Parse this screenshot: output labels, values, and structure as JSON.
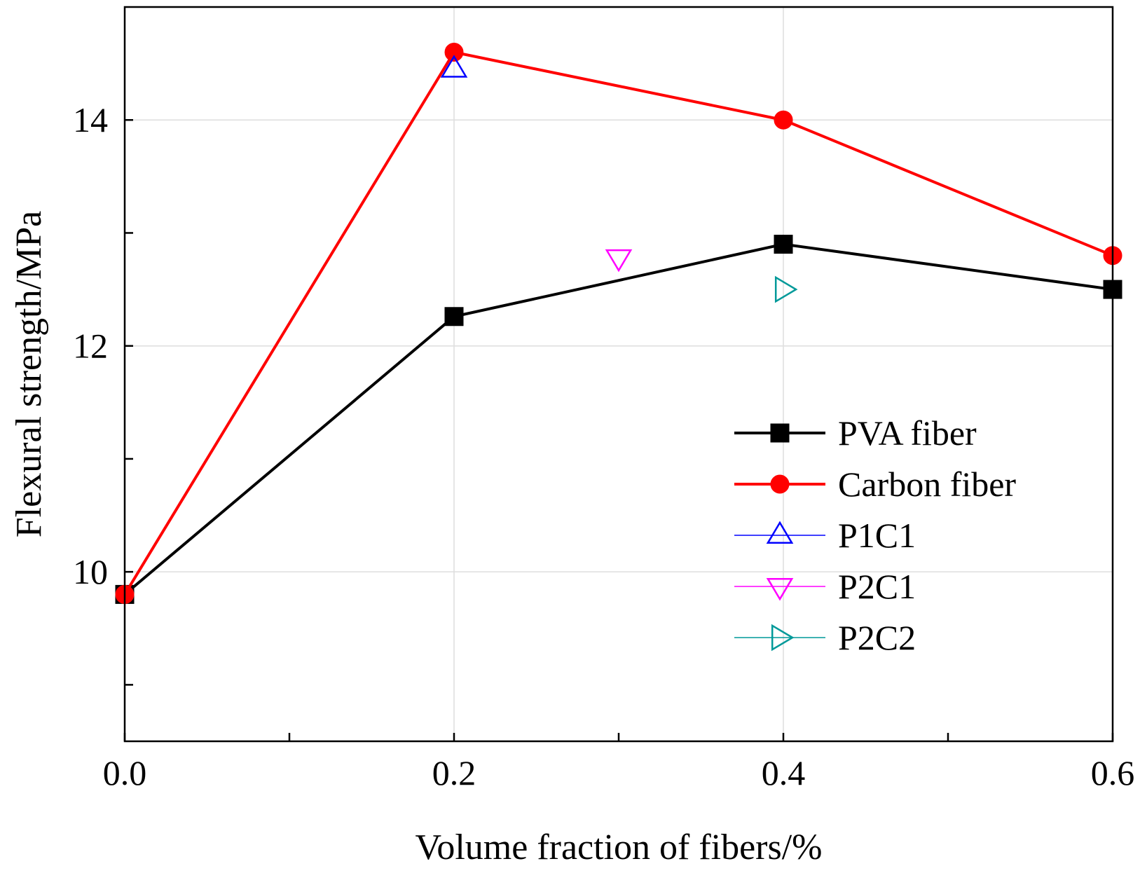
{
  "chart_data": {
    "type": "line",
    "title": "",
    "xlabel": "Volume fraction of fibers/%",
    "ylabel": "Flexural strength/MPa",
    "xlim": [
      0,
      0.6
    ],
    "ylim": [
      8.5,
      15.0
    ],
    "xticks": [
      0,
      0.1,
      0.2,
      0.3,
      0.4,
      0.5,
      0.6
    ],
    "xtick_labels": [
      "0.0",
      "",
      "0.2",
      "",
      "0.4",
      "",
      "0.6"
    ],
    "yticks": [
      9,
      10,
      11,
      12,
      13,
      14
    ],
    "ytick_labels": [
      "",
      "10",
      "",
      "12",
      "",
      "14"
    ],
    "grid": true,
    "legend_position": "bottom-right",
    "series": [
      {
        "name": "PVA fiber",
        "color": "#000000",
        "marker": "square",
        "line": true,
        "x": [
          0,
          0.2,
          0.4,
          0.6
        ],
        "y": [
          9.8,
          12.26,
          12.9,
          12.5
        ]
      },
      {
        "name": "Carbon fiber",
        "color": "#ff0000",
        "marker": "circle",
        "line": true,
        "x": [
          0,
          0.2,
          0.4,
          0.6
        ],
        "y": [
          9.8,
          14.6,
          14.0,
          12.8
        ]
      },
      {
        "name": "P1C1",
        "color": "#0000ff",
        "marker": "triangle-up",
        "line": false,
        "x": [
          0.2
        ],
        "y": [
          14.45
        ]
      },
      {
        "name": "P2C1",
        "color": "#ff00ff",
        "marker": "triangle-down",
        "line": false,
        "x": [
          0.3
        ],
        "y": [
          12.78
        ]
      },
      {
        "name": "P2C2",
        "color": "#009999",
        "marker": "triangle-right",
        "line": false,
        "x": [
          0.4
        ],
        "y": [
          12.5
        ]
      }
    ]
  }
}
